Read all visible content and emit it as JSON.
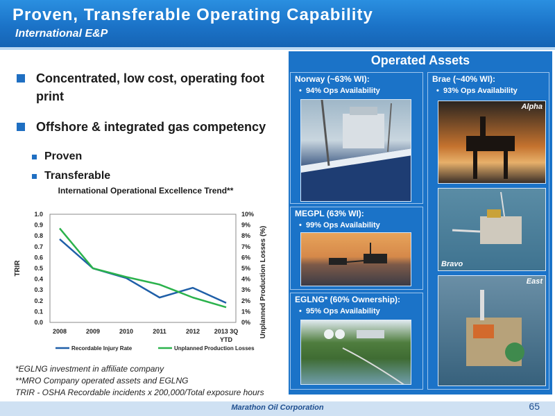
{
  "header": {
    "title": "Proven, Transferable Operating Capability",
    "subtitle": "International E&P"
  },
  "bullets": [
    {
      "text": "Concentrated, low cost, operating foot print",
      "sub": []
    },
    {
      "text": "Offshore & integrated gas competency",
      "sub": [
        "Proven",
        "Transferable"
      ]
    }
  ],
  "chart_data": {
    "type": "line",
    "title": "International Operational Excellence Trend**",
    "categories": [
      "2008",
      "2009",
      "2010",
      "2011",
      "2012",
      "2013 3Q YTD"
    ],
    "ylabel": "TRIR",
    "y2label": "Unplanned Production Losses (%)",
    "ylim": [
      0.0,
      1.0
    ],
    "y2lim": [
      0,
      10
    ],
    "yticks": [
      "0.0",
      "0.1",
      "0.2",
      "0.3",
      "0.4",
      "0.5",
      "0.6",
      "0.7",
      "0.8",
      "0.9",
      "1.0"
    ],
    "y2ticks": [
      "0%",
      "1%",
      "2%",
      "3%",
      "4%",
      "5%",
      "6%",
      "7%",
      "8%",
      "9%",
      "10%"
    ],
    "series": [
      {
        "name": "Recordable Injury Rate",
        "axis": "left",
        "color": "#1f5fa8",
        "values": [
          0.77,
          0.5,
          0.41,
          0.23,
          0.32,
          0.18
        ]
      },
      {
        "name": "Unplanned Production Losses",
        "axis": "right",
        "color": "#2bb24c",
        "values": [
          8.7,
          5.0,
          4.2,
          3.5,
          2.3,
          1.4
        ]
      }
    ],
    "legend": "bottom",
    "grid": false
  },
  "footnotes": [
    "*EGLNG investment in affiliate company",
    "**MRO Company operated assets and EGLNG",
    "TRIR - OSHA Recordable incidents x 200,000/Total exposure hours"
  ],
  "footer": {
    "company": "Marathon Oil Corporation",
    "page": "65"
  },
  "assets": {
    "title": "Operated Assets",
    "norway": {
      "title": "Norway (~63% WI):",
      "bullet": "94% Ops Availability"
    },
    "brae": {
      "title": "Brae (~40% WI):",
      "bullet": "93% Ops Availability",
      "labels": [
        "Alpha",
        "Bravo",
        "East"
      ]
    },
    "megpl": {
      "title": "MEGPL (63% WI):",
      "bullet": "99% Ops Availability"
    },
    "eglng": {
      "title": "EGLNG* (60% Ownership):",
      "bullet": "95% Ops Availability"
    }
  },
  "colors": {
    "brand_blue": "#1b73c8",
    "accent": "#1f6fc2"
  }
}
